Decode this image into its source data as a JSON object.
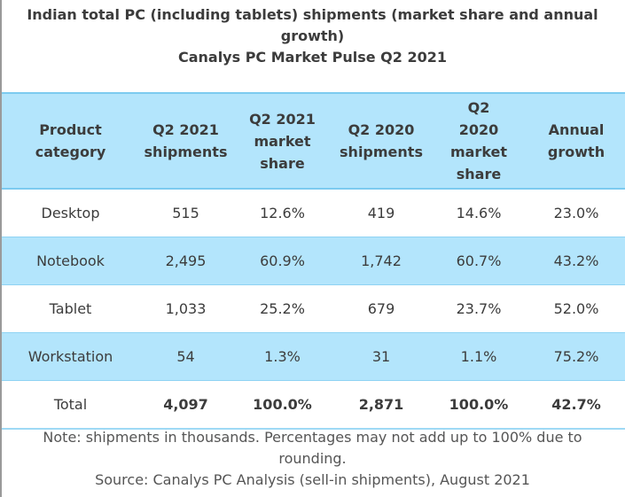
{
  "title": {
    "line1": "Indian total PC (including tablets) shipments (market share and annual growth)",
    "line2": "Canalys PC Market Pulse Q2 2021"
  },
  "table": {
    "headers": [
      "Product category",
      "Q2 2021 shipments",
      "Q2 2021 market share",
      "Q2 2020 shipments",
      "Q2 2020 market share",
      "Annual growth"
    ],
    "rows": [
      [
        "Desktop",
        "515",
        "12.6%",
        "419",
        "14.6%",
        "23.0%"
      ],
      [
        "Notebook",
        "2,495",
        "60.9%",
        "1,742",
        "60.7%",
        "43.2%"
      ],
      [
        "Tablet",
        "1,033",
        "25.2%",
        "679",
        "23.7%",
        "52.0%"
      ],
      [
        "Workstation",
        "54",
        "1.3%",
        "31",
        "1.1%",
        "75.2%"
      ]
    ],
    "total": [
      "Total",
      "4,097",
      "100.0%",
      "2,871",
      "100.0%",
      "42.7%"
    ]
  },
  "footer": {
    "note": "Note: shipments in thousands. Percentages may not add up to 100% due to rounding.",
    "source": "Source: Canalys PC Analysis (sell-in shipments), August 2021"
  },
  "colors": {
    "highlight": "#b3e5fc",
    "border": "#7ccbf0"
  }
}
